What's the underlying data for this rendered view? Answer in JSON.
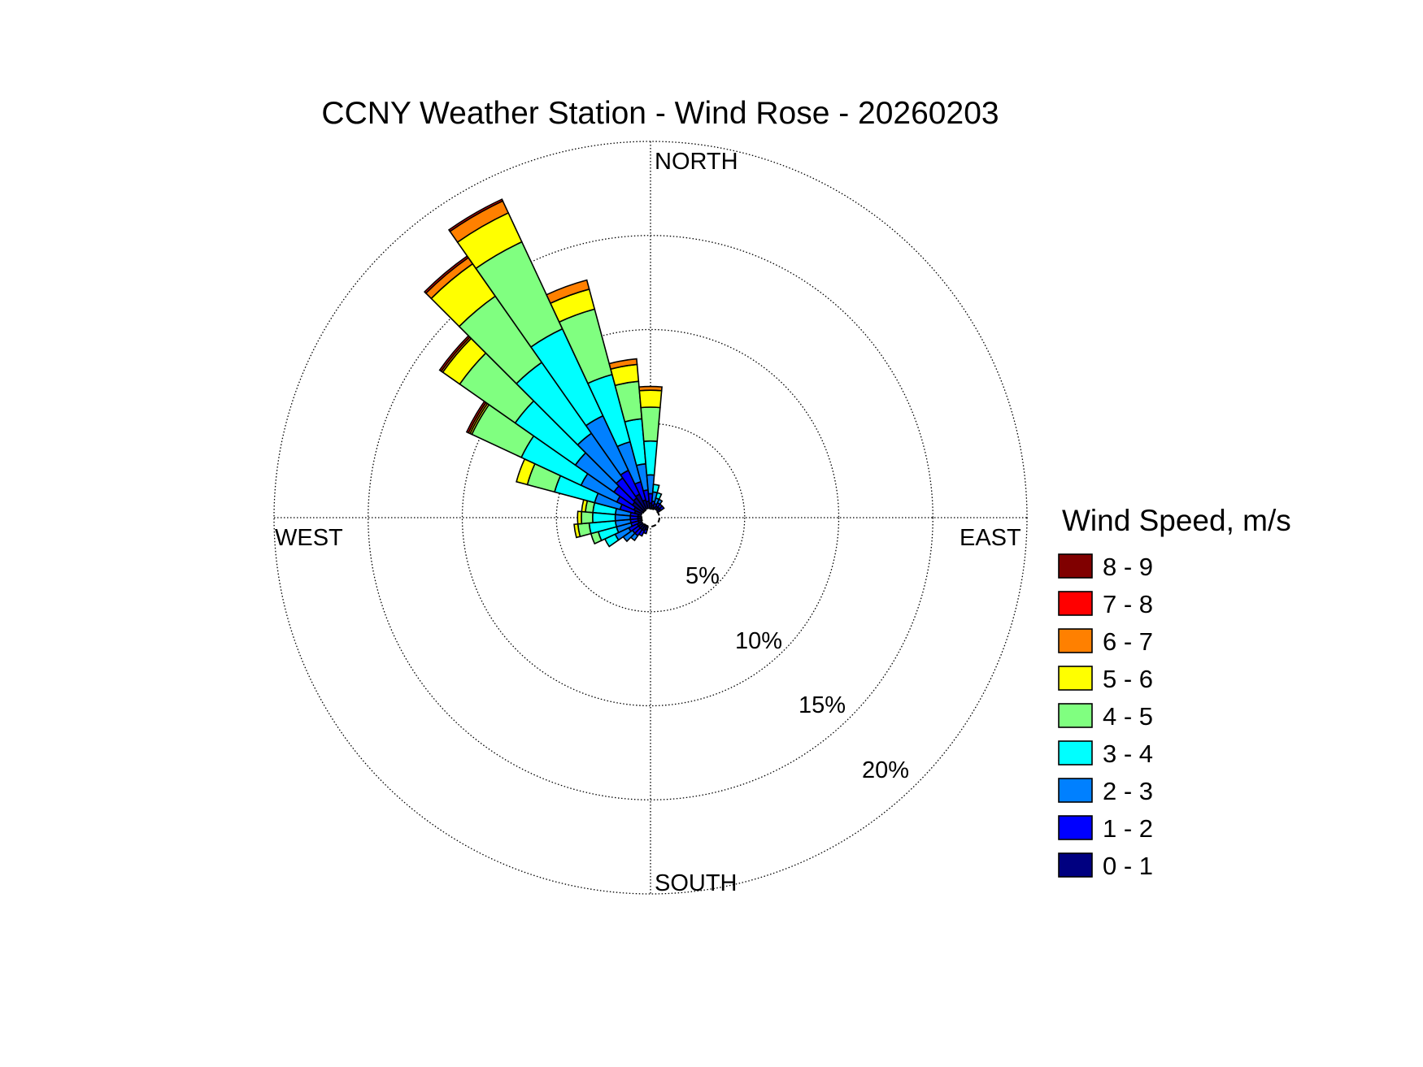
{
  "chart_data": {
    "type": "windrose",
    "title": "CCNY Weather Station - Wind Rose - 20260203",
    "direction_labels": {
      "north": "NORTH",
      "east": "EAST",
      "south": "SOUTH",
      "west": "WEST"
    },
    "radial_ticks": [
      5,
      10,
      15,
      20
    ],
    "radial_tick_labels": [
      "5%",
      "10%",
      "15%",
      "20%"
    ],
    "rmax": 20,
    "legend": {
      "title": "Wind Speed, m/s",
      "bins": [
        {
          "label": "8 - 9",
          "color": "#800000"
        },
        {
          "label": "7 - 8",
          "color": "#FF0000"
        },
        {
          "label": "6 - 7",
          "color": "#FF8000"
        },
        {
          "label": "5 - 6",
          "color": "#FFFF00"
        },
        {
          "label": "4 - 5",
          "color": "#80FF80"
        },
        {
          "label": "3 - 4",
          "color": "#00FFFF"
        },
        {
          "label": "2 - 3",
          "color": "#0080FF"
        },
        {
          "label": "1 - 2",
          "color": "#0000FF"
        },
        {
          "label": "0 - 1",
          "color": "#000080"
        }
      ]
    },
    "speed_bins": [
      "0 - 1",
      "1 - 2",
      "2 - 3",
      "3 - 4",
      "4 - 5",
      "5 - 6",
      "6 - 7",
      "7 - 8",
      "8 - 9"
    ],
    "sector_width_deg": 10,
    "sectors": [
      {
        "direction_deg": 280,
        "cumulative_percent": [
          0.2,
          0.6,
          1.4,
          2.6,
          3.0,
          3.2
        ]
      },
      {
        "direction_deg": 290,
        "cumulative_percent": [
          0.4,
          1.2,
          2.6,
          4.8,
          6.3,
          6.9
        ]
      },
      {
        "direction_deg": 300,
        "cumulative_percent": [
          0.5,
          1.5,
          3.6,
          7.1,
          10.0,
          10.1,
          10.2,
          10.3
        ]
      },
      {
        "direction_deg": 310,
        "cumulative_percent": [
          0.7,
          1.9,
          4.4,
          8.3,
          11.9,
          13.0,
          13.1,
          13.2
        ]
      },
      {
        "direction_deg": 320,
        "cumulative_percent": [
          0.8,
          2.1,
          5.0,
          9.6,
          13.9,
          16.0,
          16.4,
          16.5
        ]
      },
      {
        "direction_deg": 330,
        "cumulative_percent": [
          0.9,
          2.3,
          5.5,
          10.6,
          15.7,
          17.4,
          18.1,
          18.2
        ]
      },
      {
        "direction_deg": 340,
        "cumulative_percent": [
          0.5,
          1.5,
          3.7,
          7.4,
          11.0,
          12.1,
          12.6
        ]
      },
      {
        "direction_deg": 350,
        "cumulative_percent": [
          0.4,
          1.0,
          2.4,
          4.8,
          6.8,
          7.7,
          8.0
        ]
      },
      {
        "direction_deg": 0,
        "cumulative_percent": [
          0.3,
          0.8,
          1.8,
          3.6,
          5.4,
          6.3,
          6.5
        ]
      },
      {
        "direction_deg": 10,
        "cumulative_percent": [
          0.2,
          0.4,
          0.9,
          1.3
        ]
      },
      {
        "direction_deg": 20,
        "cumulative_percent": [
          0.1,
          0.3,
          0.6,
          0.9
        ]
      },
      {
        "direction_deg": 30,
        "cumulative_percent": [
          0.2,
          0.4,
          0.6
        ]
      },
      {
        "direction_deg": 40,
        "cumulative_percent": [
          0.2,
          0.4
        ]
      },
      {
        "direction_deg": 50,
        "cumulative_percent": [
          0.2,
          0.4
        ]
      },
      {
        "direction_deg": 200,
        "cumulative_percent": [
          0.2,
          0.4
        ]
      },
      {
        "direction_deg": 210,
        "cumulative_percent": [
          0.3,
          0.6
        ]
      },
      {
        "direction_deg": 220,
        "cumulative_percent": [
          0.3,
          0.7,
          1.0
        ]
      },
      {
        "direction_deg": 230,
        "cumulative_percent": [
          0.3,
          0.7,
          1.3
        ]
      },
      {
        "direction_deg": 240,
        "cumulative_percent": [
          0.3,
          0.8,
          1.6,
          2.2
        ]
      },
      {
        "direction_deg": 250,
        "cumulative_percent": [
          0.2,
          0.6,
          1.4,
          2.4,
          2.8
        ]
      },
      {
        "direction_deg": 260,
        "cumulative_percent": [
          0.2,
          0.6,
          1.4,
          2.8,
          3.4,
          3.6
        ]
      },
      {
        "direction_deg": 270,
        "cumulative_percent": [
          0.2,
          0.6,
          1.4,
          2.6,
          3.2,
          3.4
        ]
      }
    ]
  }
}
